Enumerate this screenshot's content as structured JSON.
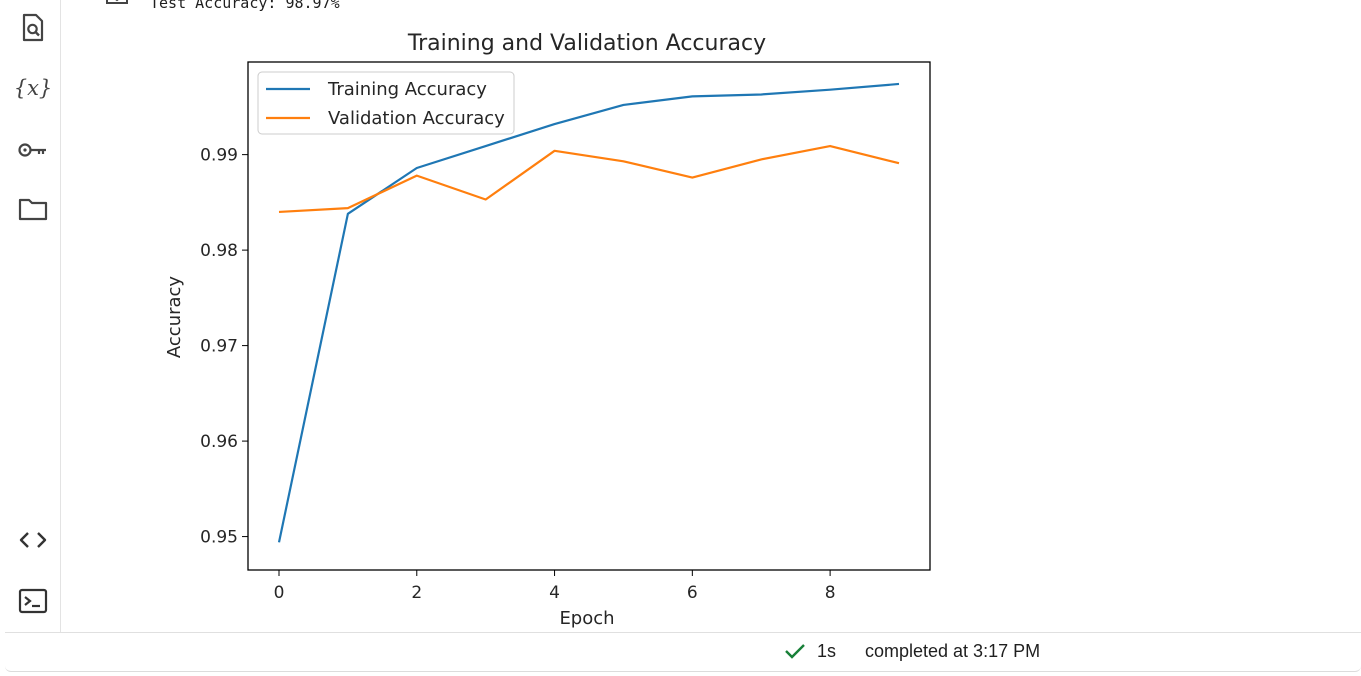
{
  "sidebar": {
    "items": [
      {
        "icon": "search-doc-icon"
      },
      {
        "icon": "variables-icon",
        "glyph": "{x}"
      },
      {
        "icon": "key-icon"
      },
      {
        "icon": "folder-icon"
      },
      {
        "icon": "code-icon"
      },
      {
        "icon": "terminal-icon"
      }
    ]
  },
  "output": {
    "text": "Test Accuracy: 98.97%"
  },
  "chart_data": {
    "type": "line",
    "title": "Training and Validation Accuracy",
    "xlabel": "Epoch",
    "ylabel": "Accuracy",
    "x": [
      0,
      1,
      2,
      3,
      4,
      5,
      6,
      7,
      8,
      9
    ],
    "xticks": [
      "0",
      "2",
      "4",
      "6",
      "8"
    ],
    "yticks": [
      "0.95",
      "0.96",
      "0.97",
      "0.98",
      "0.99"
    ],
    "xlim": [
      -0.45,
      9.45
    ],
    "ylim": [
      0.9465,
      0.9997
    ],
    "legend_position": "upper-left",
    "series": [
      {
        "name": "Training Accuracy",
        "color": "#1f77b4",
        "values": [
          0.9494,
          0.9838,
          0.9886,
          0.9909,
          0.9932,
          0.9952,
          0.9961,
          0.9963,
          0.9968,
          0.9974
        ]
      },
      {
        "name": "Validation Accuracy",
        "color": "#ff7f0e",
        "values": [
          0.984,
          0.9844,
          0.9878,
          0.9853,
          0.9904,
          0.9893,
          0.9876,
          0.9895,
          0.9909,
          0.9891
        ]
      }
    ]
  },
  "status": {
    "duration": "1s",
    "message": "completed at 3:17 PM",
    "check_color": "#188038"
  }
}
